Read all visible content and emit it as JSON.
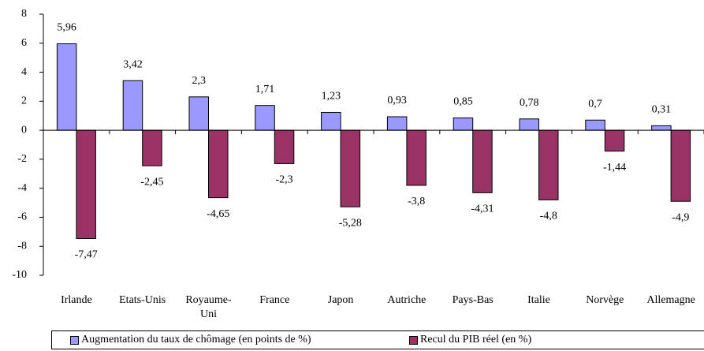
{
  "chart_data": {
    "type": "bar",
    "categories": [
      "Irlande",
      "Etats-Unis",
      "Royaume-Uni",
      "France",
      "Japon",
      "Autriche",
      "Pays-Bas",
      "Italie",
      "Norvège",
      "Allemagne"
    ],
    "series": [
      {
        "name": "Augmentation du taux de chômage (en points de %)",
        "color": "#9999ff",
        "values": [
          5.96,
          3.42,
          2.3,
          1.71,
          1.23,
          0.93,
          0.85,
          0.78,
          0.7,
          0.31
        ],
        "value_labels": [
          "5,96",
          "3,42",
          "2,3",
          "1,71",
          "1,23",
          "0,93",
          "0,85",
          "0,78",
          "0,7",
          "0,31"
        ]
      },
      {
        "name": "Recul du PIB réel (en %)",
        "color": "#993366",
        "values": [
          -7.47,
          -2.45,
          -4.65,
          -2.3,
          -5.28,
          -3.8,
          -4.31,
          -4.8,
          -1.44,
          -4.9
        ],
        "value_labels": [
          "-7,47",
          "-2,45",
          "-4,65",
          "-2,3",
          "-5,28",
          "-3,8",
          "-4,31",
          "-4,8",
          "-1,44",
          "-4,9"
        ]
      }
    ],
    "ylim": [
      -10,
      8
    ],
    "yticks": [
      -10,
      -8,
      -6,
      -4,
      -2,
      0,
      2,
      4,
      6,
      8
    ],
    "grid": false,
    "legend": "bottom"
  }
}
